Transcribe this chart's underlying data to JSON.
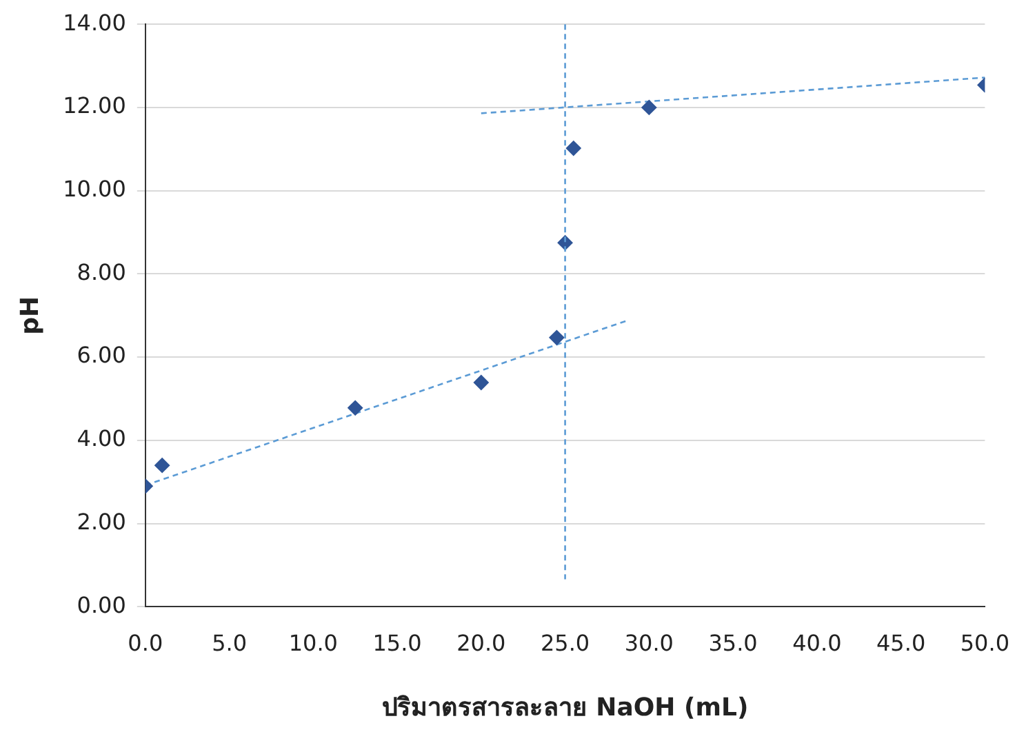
{
  "chart_data": {
    "type": "scatter",
    "xlabel": "ปริมาตรสารละลาย NaOH (mL)",
    "ylabel": "pH",
    "series": [
      {
        "type": "scatter",
        "color": "#2f5597",
        "marker": "diamond",
        "x": [
          0,
          1,
          12.5,
          20,
          24.5,
          25,
          25.5,
          30,
          50
        ],
        "values": [
          2.9,
          3.4,
          4.78,
          5.39,
          6.47,
          8.75,
          11.02,
          12.0,
          12.54
        ]
      },
      {
        "type": "line",
        "color": "#5b9bd5",
        "marker": "none",
        "line_style": "dashed",
        "x": [
          0,
          28.7
        ],
        "values": [
          2.92,
          6.88
        ]
      },
      {
        "type": "line",
        "color": "#5b9bd5",
        "marker": "none",
        "line_style": "dashed",
        "x": [
          20,
          50
        ],
        "values": [
          11.86,
          12.72
        ]
      }
    ],
    "ref_lines": [
      {
        "axis": "x",
        "value": 25,
        "color": "#5b9bd5",
        "line_style": "dashed"
      }
    ],
    "xlim": [
      0,
      50
    ],
    "xticks": [
      {
        "value": 0,
        "label": "0.0"
      },
      {
        "value": 5,
        "label": "5.0"
      },
      {
        "value": 10,
        "label": "10.0"
      },
      {
        "value": 15,
        "label": "15.0"
      },
      {
        "value": 20,
        "label": "20.0"
      },
      {
        "value": 25,
        "label": "25.0"
      },
      {
        "value": 30,
        "label": "30.0"
      },
      {
        "value": 35,
        "label": "35.0"
      },
      {
        "value": 40,
        "label": "40.0"
      },
      {
        "value": 45,
        "label": "45.0"
      },
      {
        "value": 50,
        "label": "50.0"
      }
    ],
    "ylim": [
      0,
      14
    ],
    "yticks": [
      {
        "value": 0,
        "label": "0.00"
      },
      {
        "value": 2,
        "label": "2.00"
      },
      {
        "value": 4,
        "label": "4.00"
      },
      {
        "value": 6,
        "label": "6.00"
      },
      {
        "value": 8,
        "label": "8.00"
      },
      {
        "value": 10,
        "label": "10.00"
      },
      {
        "value": 12,
        "label": "12.00"
      },
      {
        "value": 14,
        "label": "14.00"
      }
    ],
    "grid": "y",
    "legend": false
  }
}
